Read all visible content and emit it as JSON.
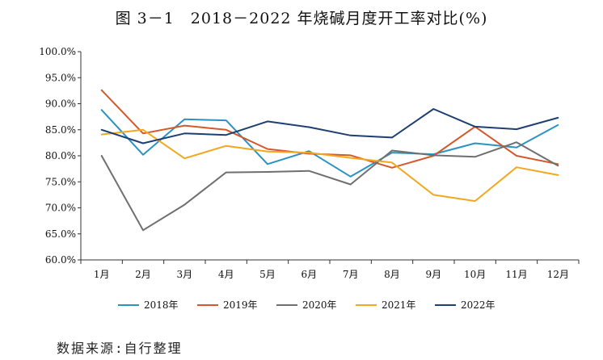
{
  "chart_data": {
    "type": "line",
    "title": "图 3－1　2018－2022 年烧碱月度开工率对比(%)",
    "xlabel": "",
    "ylabel": "",
    "categories": [
      "1月",
      "2月",
      "3月",
      "4月",
      "5月",
      "6月",
      "7月",
      "8月",
      "9月",
      "10月",
      "11月",
      "12月"
    ],
    "ylim": [
      60,
      100
    ],
    "yticks": [
      60,
      65,
      70,
      75,
      80,
      85,
      90,
      95,
      100
    ],
    "ytick_labels": [
      "60.0%",
      "65.0%",
      "70.0%",
      "75.0%",
      "80.0%",
      "85.0%",
      "90.0%",
      "95.0%",
      "100.0%"
    ],
    "grid": false,
    "legend_position": "bottom",
    "series": [
      {
        "name": "2018年",
        "color": "#2a93c2",
        "values": [
          88.8,
          80.2,
          87.0,
          86.8,
          78.4,
          80.9,
          76.0,
          80.6,
          80.3,
          82.4,
          81.6,
          85.9
        ]
      },
      {
        "name": "2019年",
        "color": "#d3592b",
        "values": [
          92.6,
          84.3,
          85.8,
          85.0,
          81.3,
          80.4,
          80.1,
          77.7,
          80.0,
          85.6,
          80.0,
          78.4
        ]
      },
      {
        "name": "2020年",
        "color": "#6f6f6f",
        "values": [
          80.0,
          65.7,
          70.6,
          76.8,
          76.9,
          77.1,
          74.5,
          81.0,
          80.1,
          79.8,
          82.6,
          78.1
        ]
      },
      {
        "name": "2021年",
        "color": "#f2a81e",
        "values": [
          84.1,
          85.0,
          79.5,
          81.9,
          80.8,
          80.6,
          79.6,
          78.7,
          72.5,
          71.3,
          77.8,
          76.3
        ]
      },
      {
        "name": "2022年",
        "color": "#1d3f73",
        "values": [
          85.0,
          82.4,
          84.3,
          84.0,
          86.6,
          85.5,
          83.9,
          83.5,
          89.0,
          85.6,
          85.1,
          87.3
        ]
      }
    ]
  },
  "source_text": "数据来源:自行整理"
}
